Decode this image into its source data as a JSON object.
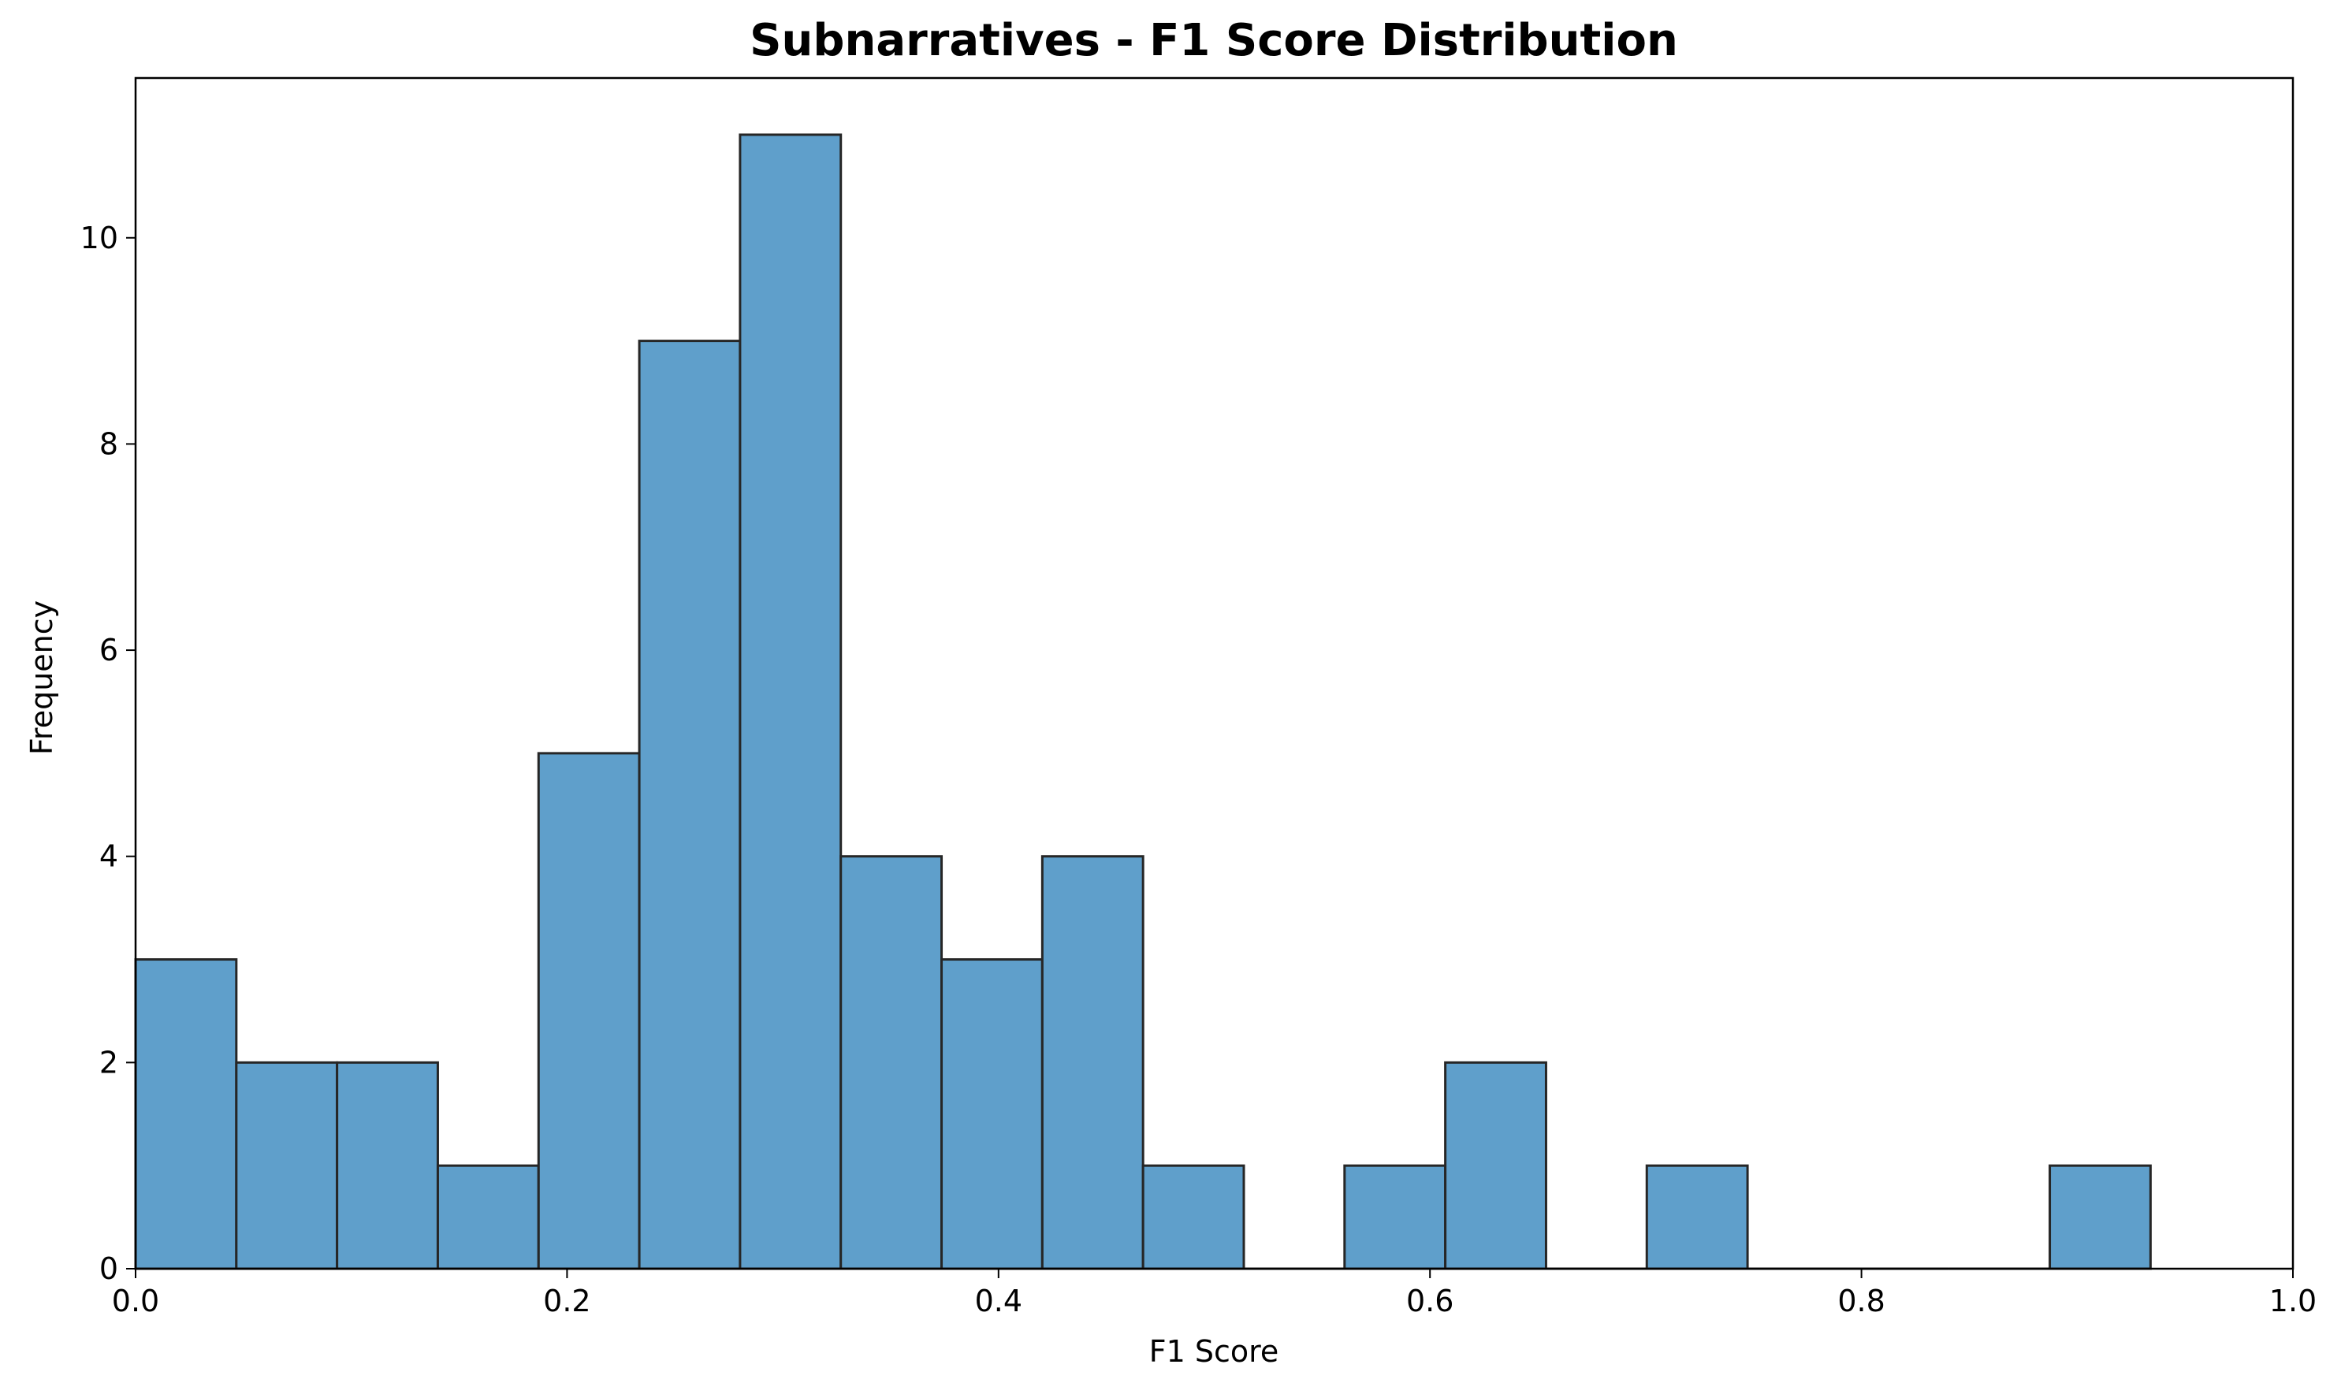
{
  "chart_data": {
    "type": "bar",
    "subtype": "histogram",
    "title": "Subnarratives - F1 Score Distribution",
    "xlabel": "F1 Score",
    "ylabel": "Frequency",
    "xlim": [
      0.0,
      1.0
    ],
    "ylim": [
      0,
      11.55
    ],
    "xticks": [
      0.0,
      0.2,
      0.4,
      0.6,
      0.8,
      1.0
    ],
    "xtick_labels": [
      "0.0",
      "0.2",
      "0.4",
      "0.6",
      "0.8",
      "1.0"
    ],
    "yticks": [
      0,
      2,
      4,
      6,
      8,
      10
    ],
    "ytick_labels": [
      "0",
      "2",
      "4",
      "6",
      "8",
      "10"
    ],
    "bin_start": 0.0,
    "bin_width": 0.0467,
    "counts": [
      3,
      2,
      2,
      1,
      5,
      9,
      11,
      4,
      3,
      4,
      1,
      0,
      1,
      2,
      0,
      1,
      0,
      0,
      0,
      1
    ],
    "bar_color": "#5f9fcb",
    "edge_color": "#262626",
    "grid": false,
    "legend": "none"
  }
}
